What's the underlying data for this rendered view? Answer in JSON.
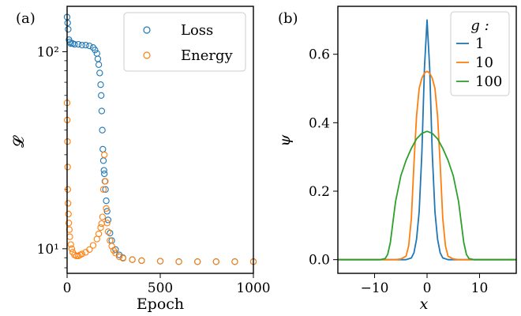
{
  "chart_data": [
    {
      "panel": "(a)",
      "type": "scatter",
      "xlabel": "Epoch",
      "ylabel": "𝓛",
      "yscale": "log",
      "xlim": [
        0,
        1000
      ],
      "ylim": [
        7.5,
        170
      ],
      "xticks": [
        0,
        500,
        1000
      ],
      "xtick_labels": [
        "0",
        "500",
        "1000"
      ],
      "ytick_labels": [
        "10¹",
        "10²"
      ],
      "legend": {
        "loc": "upper-right"
      },
      "series": [
        {
          "name": "Loss",
          "color": "#1f77b4",
          "marker": "open-circle",
          "x": [
            0,
            3,
            6,
            10,
            15,
            20,
            30,
            40,
            60,
            80,
            100,
            120,
            140,
            150,
            160,
            165,
            170,
            175,
            180,
            183,
            186,
            189,
            192,
            195,
            198,
            200,
            203,
            206,
            210,
            215,
            220,
            230,
            240,
            260,
            280,
            300,
            350,
            400,
            500,
            600,
            700,
            800,
            900,
            1000
          ],
          "values": [
            150,
            140,
            130,
            115,
            112,
            110,
            110,
            109,
            109,
            108,
            108,
            107,
            105,
            102,
            98,
            92,
            86,
            78,
            68,
            60,
            50,
            40,
            32,
            28,
            25,
            24,
            22,
            20,
            17.5,
            15.5,
            14,
            12,
            11,
            9.9,
            9.3,
            9.0,
            8.8,
            8.7,
            8.65,
            8.6,
            8.6,
            8.6,
            8.6,
            8.6
          ]
        },
        {
          "name": "Energy",
          "color": "#ff7f0e",
          "marker": "open-circle",
          "x": [
            0,
            1,
            2,
            3,
            4,
            5,
            7,
            9,
            12,
            15,
            20,
            25,
            30,
            40,
            50,
            60,
            70,
            80,
            100,
            120,
            140,
            160,
            170,
            180,
            185,
            190,
            195,
            200,
            205,
            210,
            215,
            220,
            230,
            240,
            250,
            260,
            280,
            300,
            350,
            400,
            500,
            600,
            700,
            800,
            900,
            1000
          ],
          "values": [
            55,
            45,
            35,
            26,
            20,
            17,
            15,
            13.5,
            12.5,
            11.5,
            10.5,
            10,
            9.6,
            9.3,
            9.2,
            9.2,
            9.3,
            9.4,
            9.6,
            9.9,
            10.4,
            11.2,
            11.9,
            12.8,
            13.4,
            14.5,
            20,
            30,
            22,
            16,
            13.5,
            12.2,
            11,
            10.3,
            9.8,
            9.5,
            9.1,
            8.95,
            8.8,
            8.7,
            8.65,
            8.6,
            8.6,
            8.6,
            8.6,
            8.6
          ]
        }
      ]
    },
    {
      "panel": "(b)",
      "type": "line",
      "xlabel": "x",
      "ylabel": "ψ",
      "xlim": [
        -17,
        17
      ],
      "ylim": [
        -0.04,
        0.74
      ],
      "xticks": [
        -10,
        0,
        10
      ],
      "xtick_labels": [
        "−10",
        "0",
        "10"
      ],
      "yticks": [
        0.0,
        0.2,
        0.4,
        0.6
      ],
      "ytick_labels": [
        "0.0",
        "0.2",
        "0.4",
        "0.6"
      ],
      "legend": {
        "title": "g :",
        "loc": "upper-right"
      },
      "series": [
        {
          "name": "1",
          "color": "#1f77b4",
          "x": [
            -17,
            -4,
            -3,
            -2.5,
            -2,
            -1.5,
            -1,
            -0.5,
            0,
            0.5,
            1,
            1.5,
            2,
            2.5,
            3,
            4,
            17
          ],
          "values": [
            0,
            0.0,
            0.005,
            0.02,
            0.06,
            0.14,
            0.31,
            0.56,
            0.7,
            0.56,
            0.31,
            0.14,
            0.06,
            0.02,
            0.005,
            0.0,
            0
          ]
        },
        {
          "name": "10",
          "color": "#ff7f0e",
          "x": [
            -17,
            -6,
            -5,
            -4,
            -3.5,
            -3,
            -2.5,
            -2,
            -1.5,
            -1,
            -0.5,
            0,
            0.5,
            1,
            1.5,
            2,
            2.5,
            3,
            3.5,
            4,
            5,
            6,
            17
          ],
          "values": [
            0,
            0.0,
            0.002,
            0.01,
            0.04,
            0.12,
            0.28,
            0.42,
            0.5,
            0.53,
            0.545,
            0.55,
            0.545,
            0.53,
            0.5,
            0.42,
            0.28,
            0.12,
            0.04,
            0.01,
            0.002,
            0.0,
            0
          ]
        },
        {
          "name": "100",
          "color": "#2ca02c",
          "x": [
            -17,
            -9,
            -8,
            -7.5,
            -7,
            -6.5,
            -6,
            -5,
            -4,
            -3,
            -2,
            -1,
            0,
            1,
            2,
            3,
            4,
            5,
            6,
            6.5,
            7,
            7.5,
            8,
            9,
            17
          ],
          "values": [
            0,
            0.0,
            0.003,
            0.015,
            0.05,
            0.11,
            0.17,
            0.245,
            0.29,
            0.325,
            0.353,
            0.369,
            0.375,
            0.369,
            0.353,
            0.325,
            0.29,
            0.245,
            0.17,
            0.11,
            0.05,
            0.015,
            0.003,
            0.0,
            0
          ]
        }
      ]
    }
  ]
}
